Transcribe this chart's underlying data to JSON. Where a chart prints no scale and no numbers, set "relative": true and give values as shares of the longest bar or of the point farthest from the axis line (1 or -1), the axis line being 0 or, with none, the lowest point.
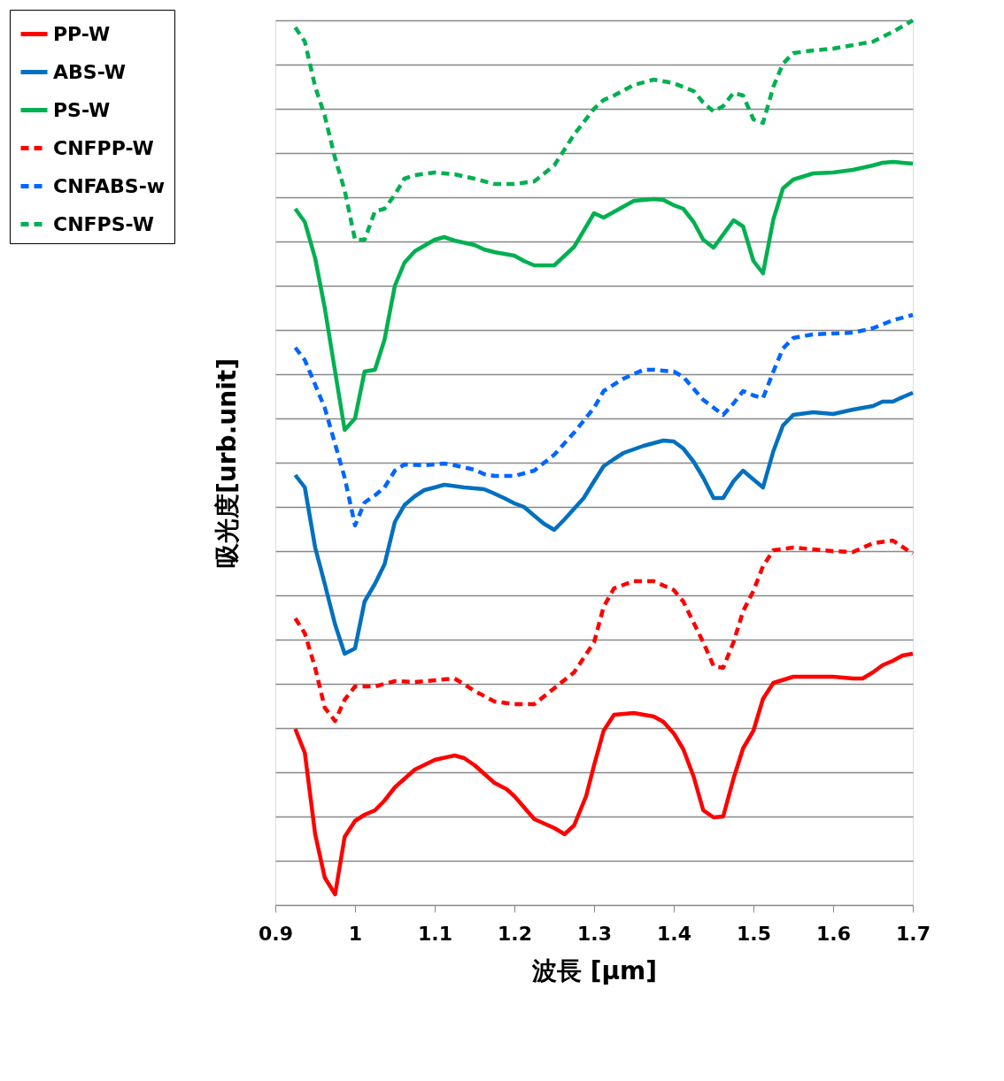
{
  "chart_data": {
    "type": "line",
    "xlabel": "波長 [μm]",
    "ylabel": "吸光度[urb.unit]",
    "relative": true,
    "xlim": [
      0.9,
      1.7
    ],
    "xticks": [
      0.9,
      1,
      1.1,
      1.2,
      1.3,
      1.4,
      1.5,
      1.6,
      1.7
    ],
    "grid": "y",
    "legend": "top left",
    "marker": "none",
    "series": [
      {
        "name": "PP-W",
        "color": "#ff0000",
        "line_style": "solid",
        "x": [
          0.925,
          0.937,
          0.95,
          0.962,
          0.975,
          0.987,
          1.0,
          1.012,
          1.025,
          1.037,
          1.05,
          1.075,
          1.1,
          1.125,
          1.137,
          1.15,
          1.175,
          1.19,
          1.2,
          1.225,
          1.25,
          1.263,
          1.275,
          1.29,
          1.3,
          1.312,
          1.325,
          1.35,
          1.375,
          1.387,
          1.4,
          1.412,
          1.425,
          1.437,
          1.45,
          1.462,
          1.475,
          1.487,
          1.5,
          1.512,
          1.525,
          1.55,
          1.6,
          1.625,
          1.637,
          1.65,
          1.662,
          1.675,
          1.687,
          1.7
        ],
        "values": [
          0.199,
          0.172,
          0.08,
          0.031,
          0.012,
          0.077,
          0.095,
          0.102,
          0.107,
          0.118,
          0.133,
          0.153,
          0.164,
          0.169,
          0.166,
          0.158,
          0.138,
          0.131,
          0.123,
          0.097,
          0.087,
          0.08,
          0.09,
          0.123,
          0.158,
          0.197,
          0.215,
          0.217,
          0.213,
          0.207,
          0.194,
          0.176,
          0.145,
          0.107,
          0.099,
          0.1,
          0.143,
          0.177,
          0.197,
          0.233,
          0.251,
          0.258,
          0.258,
          0.256,
          0.256,
          0.263,
          0.271,
          0.276,
          0.282,
          0.284
        ]
      },
      {
        "name": "ABS-W",
        "color": "#0070c0",
        "line_style": "solid",
        "x": [
          0.925,
          0.937,
          0.95,
          0.962,
          0.975,
          0.987,
          1.0,
          1.012,
          1.025,
          1.037,
          1.05,
          1.062,
          1.075,
          1.087,
          1.1,
          1.112,
          1.137,
          1.162,
          1.175,
          1.187,
          1.2,
          1.212,
          1.225,
          1.237,
          1.25,
          1.262,
          1.287,
          1.3,
          1.312,
          1.325,
          1.337,
          1.362,
          1.387,
          1.4,
          1.412,
          1.425,
          1.437,
          1.45,
          1.462,
          1.475,
          1.487,
          1.5,
          1.512,
          1.525,
          1.537,
          1.55,
          1.575,
          1.6,
          1.625,
          1.65,
          1.662,
          1.675,
          1.687,
          1.7
        ],
        "values": [
          0.486,
          0.472,
          0.404,
          0.363,
          0.317,
          0.284,
          0.29,
          0.343,
          0.363,
          0.385,
          0.433,
          0.452,
          0.462,
          0.469,
          0.472,
          0.475,
          0.472,
          0.47,
          0.465,
          0.46,
          0.454,
          0.45,
          0.44,
          0.431,
          0.424,
          0.435,
          0.46,
          0.479,
          0.496,
          0.504,
          0.511,
          0.519,
          0.525,
          0.524,
          0.516,
          0.501,
          0.483,
          0.46,
          0.46,
          0.479,
          0.491,
          0.481,
          0.472,
          0.513,
          0.542,
          0.554,
          0.557,
          0.555,
          0.56,
          0.564,
          0.569,
          0.569,
          0.574,
          0.579
        ]
      },
      {
        "name": "PS-W",
        "color": "#00b050",
        "line_style": "solid",
        "x": [
          0.925,
          0.937,
          0.95,
          0.962,
          0.975,
          0.987,
          1.0,
          1.012,
          1.025,
          1.037,
          1.05,
          1.062,
          1.075,
          1.1,
          1.112,
          1.125,
          1.15,
          1.162,
          1.175,
          1.2,
          1.212,
          1.225,
          1.25,
          1.275,
          1.3,
          1.312,
          1.35,
          1.375,
          1.387,
          1.4,
          1.412,
          1.425,
          1.437,
          1.45,
          1.475,
          1.487,
          1.5,
          1.512,
          1.525,
          1.537,
          1.55,
          1.575,
          1.6,
          1.625,
          1.65,
          1.662,
          1.675,
          1.7
        ],
        "values": [
          0.787,
          0.772,
          0.731,
          0.675,
          0.603,
          0.537,
          0.55,
          0.603,
          0.605,
          0.639,
          0.7,
          0.726,
          0.739,
          0.752,
          0.755,
          0.751,
          0.746,
          0.741,
          0.738,
          0.734,
          0.728,
          0.723,
          0.723,
          0.744,
          0.782,
          0.777,
          0.796,
          0.798,
          0.797,
          0.791,
          0.787,
          0.772,
          0.752,
          0.743,
          0.774,
          0.767,
          0.728,
          0.714,
          0.775,
          0.81,
          0.82,
          0.827,
          0.828,
          0.831,
          0.836,
          0.839,
          0.84,
          0.838
        ]
      },
      {
        "name": "CNFPP-W",
        "color": "#ff0000",
        "line_style": "dashed",
        "x": [
          0.925,
          0.937,
          0.95,
          0.962,
          0.975,
          0.987,
          1.0,
          1.025,
          1.05,
          1.075,
          1.1,
          1.125,
          1.15,
          1.175,
          1.2,
          1.225,
          1.25,
          1.275,
          1.3,
          1.312,
          1.325,
          1.35,
          1.375,
          1.4,
          1.412,
          1.425,
          1.437,
          1.45,
          1.462,
          1.475,
          1.487,
          1.5,
          1.512,
          1.525,
          1.55,
          1.575,
          1.6,
          1.625,
          1.65,
          1.675,
          1.7
        ],
        "values": [
          0.324,
          0.307,
          0.268,
          0.223,
          0.208,
          0.232,
          0.247,
          0.247,
          0.253,
          0.252,
          0.254,
          0.256,
          0.242,
          0.23,
          0.227,
          0.227,
          0.245,
          0.263,
          0.297,
          0.337,
          0.358,
          0.366,
          0.366,
          0.356,
          0.343,
          0.319,
          0.297,
          0.27,
          0.268,
          0.297,
          0.332,
          0.355,
          0.383,
          0.401,
          0.404,
          0.402,
          0.4,
          0.399,
          0.409,
          0.412,
          0.397
        ]
      },
      {
        "name": "CNFABS-w",
        "color": "#0066ff",
        "line_style": "dashed",
        "x": [
          0.925,
          0.937,
          0.95,
          0.962,
          0.975,
          0.987,
          1.0,
          1.012,
          1.025,
          1.037,
          1.05,
          1.062,
          1.087,
          1.112,
          1.125,
          1.15,
          1.162,
          1.175,
          1.2,
          1.225,
          1.25,
          1.275,
          1.3,
          1.312,
          1.337,
          1.362,
          1.375,
          1.4,
          1.412,
          1.437,
          1.462,
          1.475,
          1.487,
          1.5,
          1.512,
          1.525,
          1.537,
          1.55,
          1.575,
          1.6,
          1.625,
          1.65,
          1.675,
          1.7
        ],
        "values": [
          0.63,
          0.616,
          0.588,
          0.562,
          0.521,
          0.483,
          0.429,
          0.455,
          0.463,
          0.472,
          0.491,
          0.498,
          0.497,
          0.499,
          0.497,
          0.492,
          0.487,
          0.485,
          0.485,
          0.491,
          0.509,
          0.534,
          0.562,
          0.581,
          0.595,
          0.605,
          0.605,
          0.603,
          0.597,
          0.571,
          0.554,
          0.567,
          0.581,
          0.576,
          0.573,
          0.603,
          0.629,
          0.641,
          0.645,
          0.646,
          0.647,
          0.652,
          0.661,
          0.667
        ]
      },
      {
        "name": "CNFPS-W",
        "color": "#00b050",
        "line_style": "dashed",
        "x": [
          0.925,
          0.937,
          0.95,
          0.962,
          0.975,
          0.987,
          1.0,
          1.012,
          1.025,
          1.037,
          1.05,
          1.062,
          1.075,
          1.1,
          1.125,
          1.15,
          1.175,
          1.2,
          1.225,
          1.25,
          1.275,
          1.3,
          1.312,
          1.325,
          1.35,
          1.375,
          1.4,
          1.425,
          1.437,
          1.45,
          1.462,
          1.475,
          1.487,
          1.5,
          1.512,
          1.525,
          1.537,
          1.55,
          1.575,
          1.6,
          1.625,
          1.65,
          1.675,
          1.7
        ],
        "values": [
          0.992,
          0.976,
          0.925,
          0.892,
          0.844,
          0.808,
          0.752,
          0.752,
          0.784,
          0.787,
          0.803,
          0.821,
          0.825,
          0.828,
          0.826,
          0.821,
          0.815,
          0.815,
          0.818,
          0.836,
          0.871,
          0.9,
          0.91,
          0.915,
          0.927,
          0.933,
          0.929,
          0.92,
          0.907,
          0.897,
          0.903,
          0.918,
          0.915,
          0.888,
          0.884,
          0.925,
          0.951,
          0.963,
          0.966,
          0.968,
          0.972,
          0.976,
          0.987,
          1.0
        ]
      }
    ]
  }
}
